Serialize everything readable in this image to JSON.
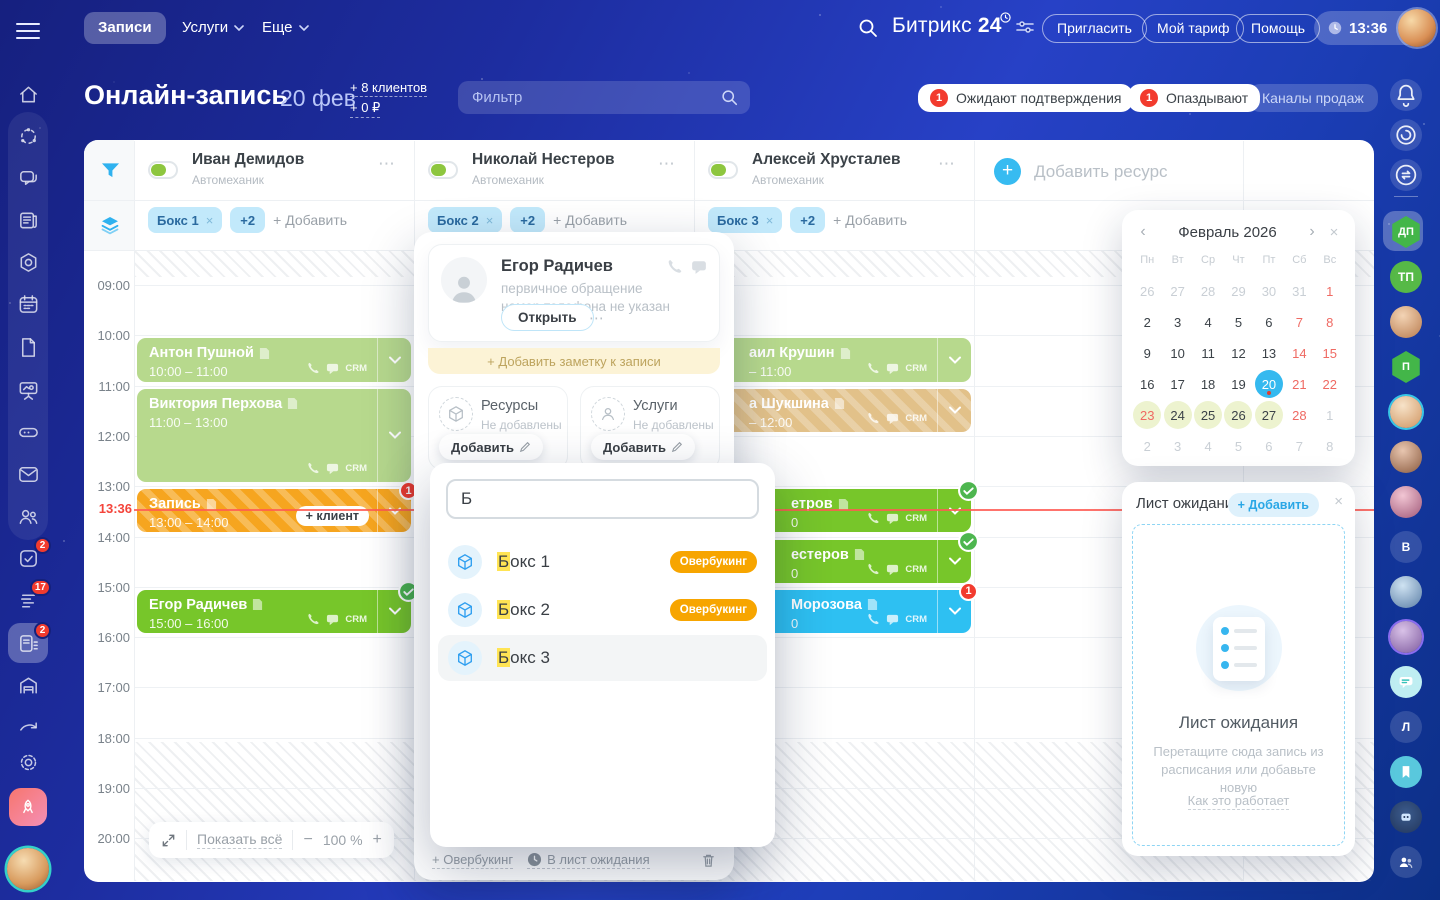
{
  "ui": {
    "close": "×",
    "dots": "⋯",
    "minus": "−",
    "plus": "+",
    "prev": "‹",
    "next": "›",
    "chip_x": "×"
  },
  "topbar": {
    "tabs": [
      {
        "label": "Записи",
        "active": true
      },
      {
        "label": "Услуги",
        "chevron": true
      },
      {
        "label": "Еще",
        "chevron": true
      }
    ],
    "logo": {
      "name": "Битрикс",
      "num": "24"
    },
    "buttons": [
      "Пригласить",
      "Мой тариф",
      "Помощь"
    ],
    "clock": "13:36"
  },
  "header": {
    "title": "Онлайн-запись",
    "date": "20 фев",
    "clients_link": "+ 8 клиентов",
    "money_link": "+ 0 ₽",
    "filter_placeholder": "Фильтр",
    "badges": [
      {
        "count": "1",
        "label": "Ожидают подтверждения"
      },
      {
        "count": "1",
        "label": "Опаздывают"
      }
    ],
    "channels_button": "Каналы продаж"
  },
  "scheduler": {
    "hours": [
      "09:00",
      "10:00",
      "11:00",
      "12:00",
      "13:00",
      "14:00",
      "15:00",
      "16:00",
      "17:00",
      "18:00",
      "19:00",
      "20:00"
    ],
    "now_time": "13:36",
    "columns": [
      {
        "name": "Иван Демидов",
        "role": "Автомеханик",
        "chip": "Бокс 1",
        "more": "+2",
        "add_label": "+ Добавить"
      },
      {
        "name": "Николай Нестеров",
        "role": "Автомеханик",
        "chip": "Бокс 2",
        "more": "+2",
        "add_label": "+ Добавить"
      },
      {
        "name": "Алексей Хрусталев",
        "role": "Автомеханик",
        "chip": "Бокс 3",
        "more": "+2",
        "add_label": "+ Добавить"
      }
    ],
    "add_resource_label": "Добавить ресурс",
    "appointments": [
      {
        "col": 0,
        "title": "Антон Пушной",
        "time": "10:00 – 11:00",
        "start": 10,
        "end": 11,
        "style": "green-light",
        "crm": true
      },
      {
        "col": 0,
        "title": "Виктория Перхова",
        "time": "11:00 – 13:00",
        "start": 11,
        "end": 13,
        "style": "green-light",
        "crm": true
      },
      {
        "col": 0,
        "title": "Запись",
        "time": "13:00 – 14:00",
        "start": 13,
        "end": 14,
        "style": "orange-hatch",
        "badge": "1",
        "client_pill": "+ клиент"
      },
      {
        "col": 0,
        "title": "Егор Радичев",
        "time": "15:00 – 16:00",
        "start": 15,
        "end": 16,
        "style": "green-bright",
        "check": true,
        "crm": true
      },
      {
        "col": 2,
        "title": "аил Крушин",
        "time": "– 11:00",
        "start": 10,
        "end": 11,
        "style": "green-light",
        "crm": true,
        "indent": 40
      },
      {
        "col": 2,
        "title": "а Шукшина",
        "time": "– 12:00",
        "start": 11,
        "end": 12,
        "style": "tan-hatch",
        "crm": true,
        "indent": 40
      },
      {
        "col": 2,
        "title": "етров",
        "time": "0",
        "start": 13,
        "end": 14,
        "style": "green-bright",
        "check": true,
        "crm": true,
        "indent": 82
      },
      {
        "col": 2,
        "title": "естеров",
        "time": "0",
        "start": 14,
        "end": 15,
        "style": "green-bright",
        "check": true,
        "crm": true,
        "indent": 82
      },
      {
        "col": 2,
        "title": "Морозова",
        "time": "0",
        "start": 15,
        "end": 16,
        "style": "blue",
        "badge": "1",
        "crm": true,
        "indent": 82
      }
    ],
    "footer": {
      "show_all": "Показать всё",
      "zoom_value": "100 %"
    }
  },
  "popup": {
    "client": {
      "name": "Егор Радичев",
      "line1": "первичное обращение",
      "line2": "номер телефона не указан",
      "open_button": "Открыть"
    },
    "note_bar": "+ Добавить заметку к записи",
    "resources_card": {
      "title": "Ресурсы",
      "status": "Не добавлены",
      "add_button": "Добавить"
    },
    "services_card": {
      "title": "Услуги",
      "status": "Не добавлены",
      "add_button": "Добавить"
    },
    "footer": {
      "overbooking": "+ Овербукинг",
      "waitlist": "В лист ожидания"
    }
  },
  "resource_dropdown": {
    "query": "Б",
    "items": [
      {
        "prefix": "Б",
        "rest": "окс 1",
        "badge": "Овербукинг"
      },
      {
        "prefix": "Б",
        "rest": "окс 2",
        "badge": "Овербукинг"
      },
      {
        "prefix": "Б",
        "rest": "окс 3",
        "badge": null,
        "hover": true
      }
    ]
  },
  "mini_calendar": {
    "title": "Февраль 2026",
    "weekdays": [
      "Пн",
      "Вт",
      "Ср",
      "Чт",
      "Пт",
      "Сб",
      "Вс"
    ],
    "weeks": [
      [
        {
          "d": "26",
          "c": "out"
        },
        {
          "d": "27",
          "c": "out"
        },
        {
          "d": "28",
          "c": "out"
        },
        {
          "d": "29",
          "c": "out"
        },
        {
          "d": "30",
          "c": "out"
        },
        {
          "d": "31",
          "c": "out"
        },
        {
          "d": "1",
          "c": "wk"
        }
      ],
      [
        {
          "d": "2"
        },
        {
          "d": "3"
        },
        {
          "d": "4"
        },
        {
          "d": "5"
        },
        {
          "d": "6"
        },
        {
          "d": "7",
          "c": "wk"
        },
        {
          "d": "8",
          "c": "wk"
        }
      ],
      [
        {
          "d": "9"
        },
        {
          "d": "10"
        },
        {
          "d": "11"
        },
        {
          "d": "12"
        },
        {
          "d": "13"
        },
        {
          "d": "14",
          "c": "wk"
        },
        {
          "d": "15",
          "c": "wk"
        }
      ],
      [
        {
          "d": "16"
        },
        {
          "d": "17"
        },
        {
          "d": "18"
        },
        {
          "d": "19"
        },
        {
          "d": "20",
          "c": "sel"
        },
        {
          "d": "21",
          "c": "wk"
        },
        {
          "d": "22",
          "c": "wk"
        }
      ],
      [
        {
          "d": "23",
          "c": "wk lime"
        },
        {
          "d": "24",
          "c": "lime"
        },
        {
          "d": "25",
          "c": "lime"
        },
        {
          "d": "26",
          "c": "lime"
        },
        {
          "d": "27",
          "c": "lime"
        },
        {
          "d": "28",
          "c": "wk"
        },
        {
          "d": "1",
          "c": "out"
        }
      ],
      [
        {
          "d": "2",
          "c": "out"
        },
        {
          "d": "3",
          "c": "out"
        },
        {
          "d": "4",
          "c": "out"
        },
        {
          "d": "5",
          "c": "out"
        },
        {
          "d": "6",
          "c": "out"
        },
        {
          "d": "7",
          "c": "out"
        },
        {
          "d": "8",
          "c": "out"
        }
      ]
    ]
  },
  "waiting_list": {
    "title": "Лист ожидания",
    "add_button": "+ Добавить",
    "empty_title": "Лист ожидания",
    "empty_text": "Перетащите сюда запись из расписания или добавьте новую",
    "link": "Как это работает"
  },
  "left_rail": {
    "badges": {
      "tasks": "2",
      "feed": "17",
      "booking": "2"
    }
  },
  "right_rail": {
    "initials": {
      "dp": "ДП",
      "tp": "ТП",
      "p": "П",
      "v": "В",
      "l": "Л"
    }
  },
  "colors": {
    "accent_blue": "#2fb2ef",
    "green_light": "#b7d98d",
    "green_bright": "#77c62a",
    "orange_card": "#f6a51f",
    "blue_card": "#2ec0f2",
    "tan_card": "#e2c189",
    "red": "#f23b2e",
    "overbooking_badge": "#f7a500",
    "selected_day": "#35b9ef"
  }
}
